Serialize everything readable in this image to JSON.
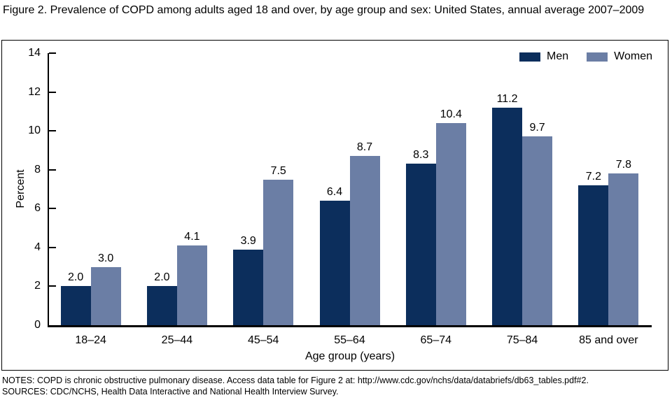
{
  "title": "Figure 2. Prevalence of COPD among adults aged 18 and over, by age group and sex: United States, annual average 2007–2009",
  "notes": {
    "line1": "NOTES: COPD is chronic obstructive pulmonary disease. Access data table for Figure 2 at: http://www.cdc.gov/nchs/data/databriefs/db63_tables.pdf#2.",
    "line2": "SOURCES: CDC/NCHS, Health Data Interactive and National Health Interview Survey."
  },
  "chart_data": {
    "type": "bar",
    "title": "Figure 2. Prevalence of COPD among adults aged 18 and over, by age group and sex: United States, annual average 2007–2009",
    "categories": [
      "18–24",
      "25–44",
      "45–54",
      "55–64",
      "65–74",
      "75–84",
      "85 and over"
    ],
    "series": [
      {
        "name": "Men",
        "color": "#0c2e5c",
        "values": [
          2.0,
          2.0,
          3.9,
          6.4,
          8.3,
          11.2,
          7.2
        ]
      },
      {
        "name": "Women",
        "color": "#6b7ea5",
        "values": [
          3.0,
          4.1,
          7.5,
          8.7,
          10.4,
          9.7,
          7.8
        ]
      }
    ],
    "xlabel": "Age group (years)",
    "ylabel": "Percent",
    "ylim": [
      0,
      14
    ],
    "ytick_step": 2,
    "value_labels": true,
    "value_label_format": "one-decimal",
    "legend_position": "top-right",
    "grid": false,
    "axis_color": "#000000",
    "background": "#ffffff"
  }
}
